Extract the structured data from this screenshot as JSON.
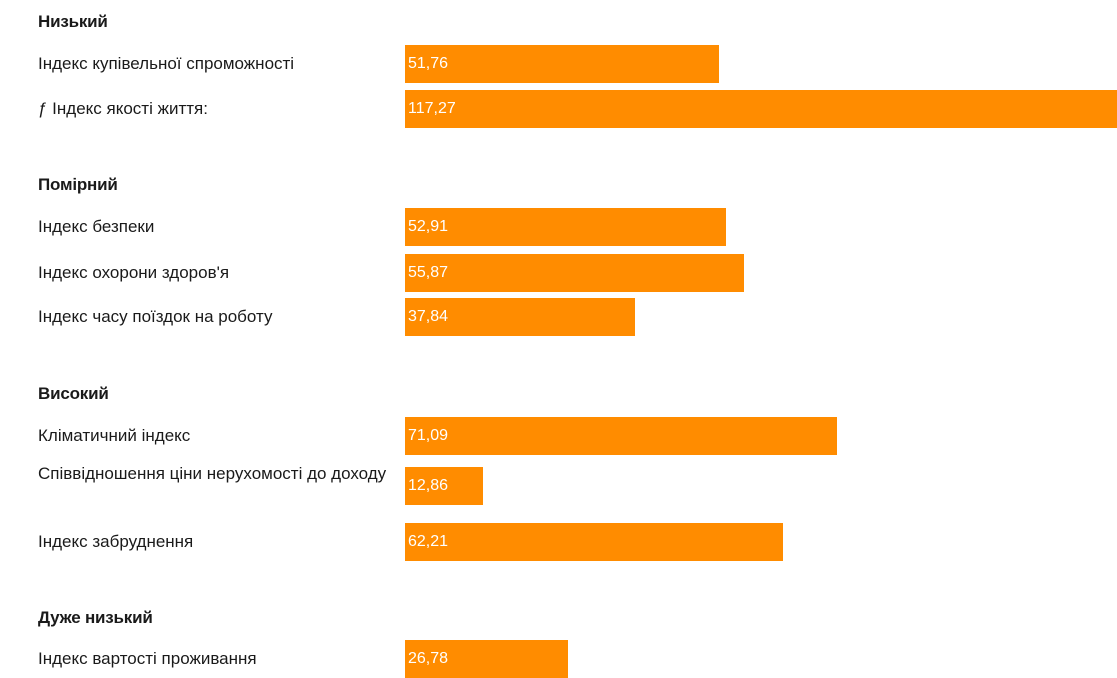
{
  "chart_data": {
    "type": "bar",
    "orientation": "horizontal",
    "xlim": [
      0,
      117.27
    ],
    "bar_color": "#FF8C00",
    "groups": [
      {
        "heading": "Низький",
        "items": [
          {
            "label": "Індекс купівельної спроможності",
            "value": 51.76,
            "value_label": "51,76"
          },
          {
            "label": "ƒ Індекс якості життя:",
            "value": 117.27,
            "value_label": "117,27"
          }
        ]
      },
      {
        "heading": "Помірний",
        "items": [
          {
            "label": "Індекс безпеки",
            "value": 52.91,
            "value_label": "52,91"
          },
          {
            "label": "Індекс охорони здоров'я",
            "value": 55.87,
            "value_label": "55,87"
          },
          {
            "label": "Індекс часу поїздок на роботу",
            "value": 37.84,
            "value_label": "37,84"
          }
        ]
      },
      {
        "heading": "Високий",
        "items": [
          {
            "label": "Кліматичний індекс",
            "value": 71.09,
            "value_label": "71,09"
          },
          {
            "label": "Співвідношення ціни нерухомості до доходу",
            "value": 12.86,
            "value_label": "12,86"
          },
          {
            "label": "Індекс забруднення",
            "value": 62.21,
            "value_label": "62,21"
          }
        ]
      },
      {
        "heading": "Дуже низький",
        "items": [
          {
            "label": "Індекс вартості проживання",
            "value": 26.78,
            "value_label": "26,78"
          }
        ]
      }
    ]
  }
}
